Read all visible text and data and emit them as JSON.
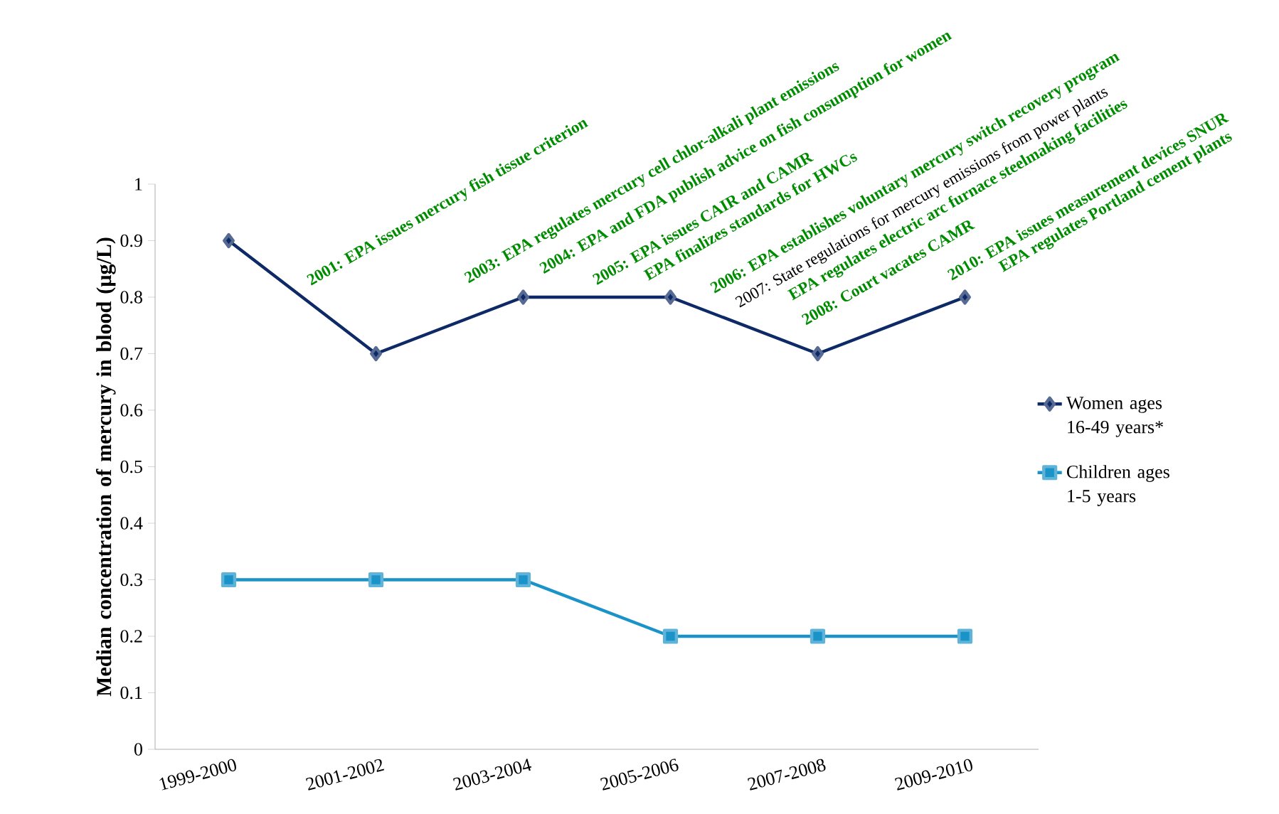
{
  "chart_data": {
    "type": "line",
    "ylabel": "Median concentration of mercury in blood (µg/L)",
    "categories": [
      "1999-2000",
      "2001-2002",
      "2003-2004",
      "2005-2006",
      "2007-2008",
      "2009-2010"
    ],
    "ylim": [
      0,
      1
    ],
    "yticks": [
      0,
      0.1,
      0.2,
      0.3,
      0.4,
      0.5,
      0.6,
      0.7,
      0.8,
      0.9,
      1
    ],
    "grid": false,
    "legend": "right",
    "line_style": "solid",
    "series": [
      {
        "name": "Women ages 16-49 years*",
        "color": "#0e2a66",
        "marker": "diamond",
        "values": [
          0.9,
          0.7,
          0.8,
          0.8,
          0.7,
          0.8
        ]
      },
      {
        "name": "Children ages 1-5 years",
        "color": "#1a93c8",
        "marker": "square",
        "values": [
          0.3,
          0.3,
          0.3,
          0.2,
          0.2,
          0.2
        ]
      }
    ],
    "annotations": [
      "2001: EPA issues mercury fish tissue criterion",
      "2003: EPA regulates mercury cell chlor-alkali plant emissions",
      "2004: EPA and FDA publish advice on fish consumption for women",
      "2005: EPA issues CAIR and CAMR",
      "EPA finalizes standards for HWCs",
      "2006: EPA establishes voluntary mercury switch recovery program",
      "2007: State regulations for mercury emissions from power plants",
      "EPA regulates electric arc furnace steelmaking facilities",
      "2008: Court vacates CAMR",
      "2010: EPA issues measurement devices SNUR",
      "EPA regulates Portland cement plants"
    ]
  }
}
